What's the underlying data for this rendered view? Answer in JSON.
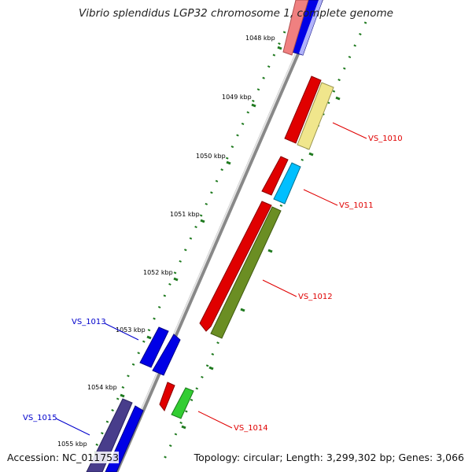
{
  "title": "Vibrio splendidus LGP32 chromosome 1, complete genome",
  "footer": {
    "accession": "Accession: NC_011753",
    "topology": "Topology: circular; Length: 3,299,302 bp; Genes: 3,066"
  },
  "ruler_labels": [
    "1048 kbp",
    "1049 kbp",
    "1050 kbp",
    "1051 kbp",
    "1052 kbp",
    "1053 kbp",
    "1054 kbp",
    "1055 kbp"
  ],
  "gene_labels": [
    {
      "id": "VS_1010",
      "label": "VS_1010",
      "color": "#e00000"
    },
    {
      "id": "VS_1011",
      "label": "VS_1011",
      "color": "#e00000"
    },
    {
      "id": "VS_1012",
      "label": "VS_1012",
      "color": "#e00000"
    },
    {
      "id": "VS_1013",
      "label": "VS_1013",
      "color": "#0000cc"
    },
    {
      "id": "VS_1014",
      "label": "VS_1014",
      "color": "#e00000"
    },
    {
      "id": "VS_1015",
      "label": "VS_1015",
      "color": "#0000cc"
    }
  ],
  "colors": {
    "backbone": "#8a8a8a",
    "ruler_ticks": "#1f7a1f",
    "forward_strand": "#e00000",
    "reverse_strand": "#0000e0"
  }
}
